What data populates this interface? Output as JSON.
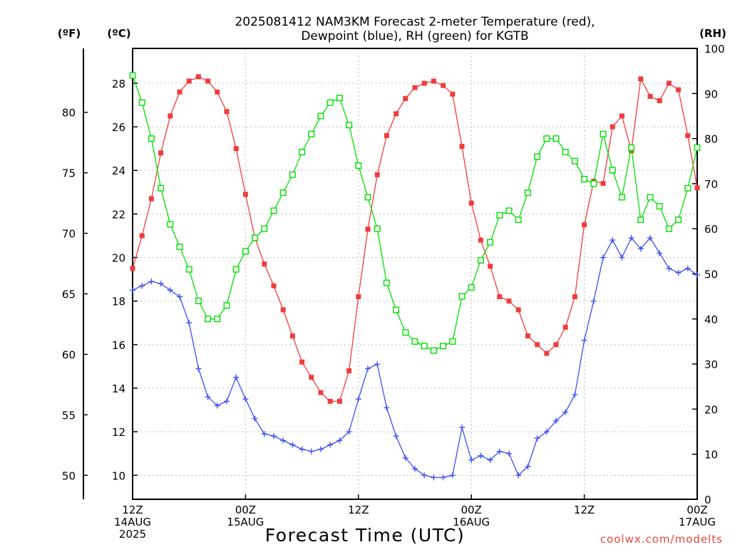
{
  "chart_data": {
    "type": "line",
    "title_lines": [
      "2025081412 NAM3KM Forecast 2-meter Temperature (red),",
      "Dewpoint (blue), RH (green) for KGTB"
    ],
    "xlabel": "Forecast Time (UTC)",
    "watermark": "coolwx.com/modelts",
    "unit_labels": {
      "fahrenheit": "(ºF)",
      "celsius": "(ºC)",
      "rh": "(RH)"
    },
    "x_range_hours": [
      0,
      60
    ],
    "x_ticks": [
      {
        "hour": 0,
        "lines": [
          "12Z",
          "14AUG",
          "2025"
        ]
      },
      {
        "hour": 12,
        "lines": [
          "00Z",
          "15AUG"
        ]
      },
      {
        "hour": 24,
        "lines": [
          "12Z"
        ]
      },
      {
        "hour": 36,
        "lines": [
          "00Z",
          "16AUG"
        ]
      },
      {
        "hour": 48,
        "lines": [
          "12Z"
        ]
      },
      {
        "hour": 60,
        "lines": [
          "00Z",
          "17AUG"
        ]
      }
    ],
    "celsius_axis": {
      "range": [
        8.9,
        29.6
      ],
      "ticks": [
        "10",
        "12",
        "14",
        "16",
        "18",
        "20",
        "22",
        "24",
        "26",
        "28"
      ]
    },
    "fahrenheit_axis": {
      "ticks": [
        "50",
        "55",
        "60",
        "65",
        "70",
        "75",
        "80"
      ]
    },
    "rh_axis": {
      "range": [
        0,
        100
      ],
      "ticks": [
        "0",
        "10",
        "20",
        "30",
        "40",
        "50",
        "60",
        "70",
        "80",
        "90",
        "100"
      ]
    },
    "x_hours": [
      0,
      1,
      2,
      3,
      4,
      5,
      6,
      7,
      8,
      9,
      10,
      11,
      12,
      13,
      14,
      15,
      16,
      17,
      18,
      19,
      20,
      21,
      22,
      23,
      24,
      25,
      26,
      27,
      28,
      29,
      30,
      31,
      32,
      33,
      34,
      35,
      36,
      37,
      38,
      39,
      40,
      41,
      42,
      43,
      44,
      45,
      46,
      47,
      48,
      49,
      50,
      51,
      52,
      53,
      54,
      55,
      56,
      57,
      58,
      59,
      60
    ],
    "series": [
      {
        "name": "2-meter Temperature",
        "axis": "celsius",
        "color": "#f03c3c",
        "marker": "filled-square",
        "values": [
          19.5,
          21.0,
          22.7,
          24.8,
          26.5,
          27.6,
          28.1,
          28.3,
          28.1,
          27.6,
          26.7,
          25.0,
          22.9,
          20.9,
          19.7,
          18.7,
          17.6,
          16.4,
          15.2,
          14.5,
          13.8,
          13.4,
          13.4,
          14.8,
          18.2,
          21.3,
          23.8,
          25.6,
          26.6,
          27.3,
          27.8,
          28.0,
          28.1,
          27.9,
          27.5,
          25.1,
          22.5,
          20.8,
          19.6,
          18.2,
          18.0,
          17.6,
          16.4,
          16.0,
          15.6,
          16.0,
          16.8,
          18.2,
          21.5,
          23.5,
          23.4,
          26.0,
          26.5,
          24.9,
          28.2,
          27.4,
          27.2,
          28.0,
          27.7,
          25.6,
          23.2
        ]
      },
      {
        "name": "Dewpoint",
        "axis": "celsius",
        "color": "#3c50f0",
        "marker": "plus",
        "values": [
          18.5,
          18.7,
          18.9,
          18.8,
          18.5,
          18.2,
          17.0,
          14.9,
          13.6,
          13.2,
          13.4,
          14.5,
          13.5,
          12.6,
          11.9,
          11.8,
          11.6,
          11.4,
          11.2,
          11.1,
          11.2,
          11.4,
          11.6,
          12.0,
          13.5,
          14.9,
          15.1,
          13.1,
          11.8,
          10.8,
          10.3,
          10.0,
          9.9,
          9.9,
          10.0,
          12.2,
          10.7,
          10.9,
          10.7,
          11.1,
          11.0,
          10.0,
          10.4,
          11.7,
          12.0,
          12.5,
          12.9,
          13.7,
          16.2,
          18.0,
          20.0,
          20.8,
          20.0,
          20.9,
          20.4,
          20.9,
          20.2,
          19.5,
          19.3,
          19.5,
          19.2
        ]
      },
      {
        "name": "RH",
        "axis": "rh",
        "color": "#00e000",
        "marker": "open-square",
        "values": [
          94,
          88,
          80,
          69,
          61,
          56,
          51,
          44,
          40,
          40,
          43,
          51,
          55,
          58,
          60,
          64,
          68,
          72,
          77,
          81,
          85,
          88,
          89,
          83,
          74,
          67,
          60,
          48,
          42,
          37,
          35,
          34,
          33,
          34,
          35,
          45,
          47,
          53,
          57,
          63,
          64,
          62,
          68,
          76,
          80,
          80,
          77,
          75,
          71,
          70,
          81,
          73,
          67,
          78,
          62,
          67,
          65,
          60,
          62,
          69,
          78
        ]
      }
    ]
  }
}
